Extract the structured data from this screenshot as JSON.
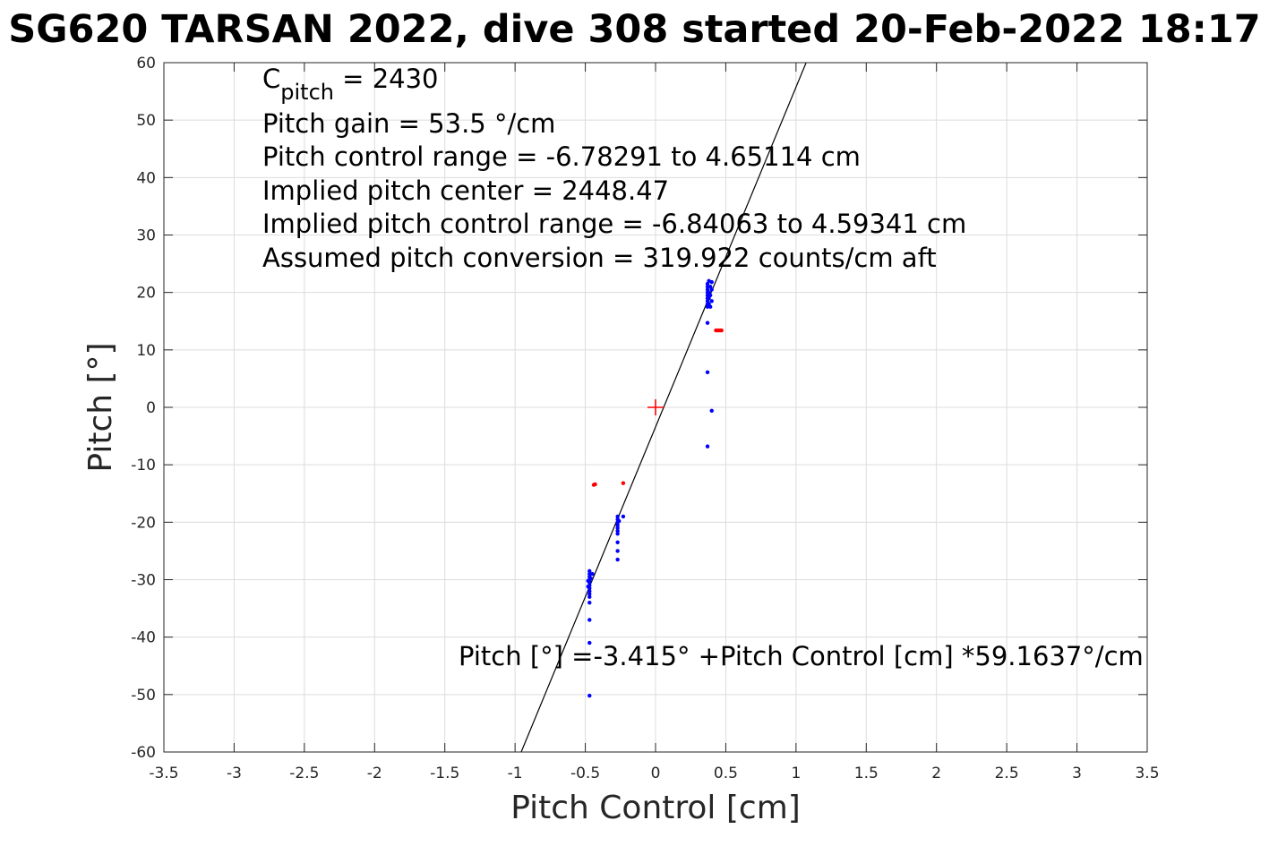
{
  "title": "SG620 TARSAN 2022, dive 308 started 20-Feb-2022 18:17",
  "chart_data": {
    "type": "scatter",
    "xlabel": "Pitch Control [cm]",
    "ylabel": "Pitch [°]",
    "xlim": [
      -3.5,
      3.5
    ],
    "ylim": [
      -60,
      60
    ],
    "xticks": [
      -3.5,
      -3,
      -2.5,
      -2,
      -1.5,
      -1,
      -0.5,
      0,
      0.5,
      1,
      1.5,
      2,
      2.5,
      3,
      3.5
    ],
    "yticks": [
      -60,
      -50,
      -40,
      -30,
      -20,
      -10,
      0,
      10,
      20,
      30,
      40,
      50,
      60
    ],
    "grid": true,
    "annotations": {
      "cpitch_base": "C",
      "cpitch_sub": "pitch",
      "cpitch_value": " = 2430",
      "pitch_gain": "Pitch gain = 53.5 °/cm",
      "control_range": "Pitch control range = -6.78291 to 4.65114 cm",
      "implied_center": "Implied pitch center = 2448.47",
      "implied_range": "Implied pitch control range = -6.84063 to 4.59341 cm",
      "conversion": "Assumed pitch conversion = 319.922 counts/cm aft",
      "fit_equation": "Pitch [°] =-3.415° +Pitch Control [cm] *59.1637°/cm"
    },
    "fit_line": {
      "intercept": -3.415,
      "slope": 59.1637,
      "color": "#000000"
    },
    "center_marker": {
      "x": 0,
      "y": 0,
      "color": "#ff0000"
    },
    "series": [
      {
        "color": "#0000ff",
        "points": [
          [
            -0.47,
            -28.5
          ],
          [
            -0.47,
            -29.0
          ],
          [
            -0.47,
            -29.5
          ],
          [
            -0.47,
            -30.0
          ],
          [
            -0.47,
            -30.5
          ],
          [
            -0.47,
            -31.0
          ],
          [
            -0.47,
            -31.5
          ],
          [
            -0.47,
            -32.0
          ],
          [
            -0.48,
            -30.2
          ],
          [
            -0.46,
            -29.8
          ],
          [
            -0.47,
            -32.5
          ],
          [
            -0.47,
            -33.0
          ],
          [
            -0.47,
            -34.0
          ],
          [
            -0.47,
            -37.0
          ],
          [
            -0.47,
            -41.0
          ],
          [
            -0.47,
            -50.2
          ],
          [
            -0.45,
            -29.0
          ],
          [
            -0.48,
            -31.2
          ],
          [
            -0.27,
            -19.0
          ],
          [
            -0.27,
            -19.5
          ],
          [
            -0.27,
            -20.0
          ],
          [
            -0.27,
            -20.5
          ],
          [
            -0.27,
            -21.0
          ],
          [
            -0.27,
            -21.5
          ],
          [
            -0.27,
            -22.0
          ],
          [
            -0.26,
            -19.8
          ],
          [
            -0.27,
            -23.5
          ],
          [
            -0.27,
            -25.0
          ],
          [
            -0.27,
            -26.5
          ],
          [
            -0.23,
            -19.0
          ],
          [
            0.37,
            17.5
          ],
          [
            0.37,
            18.0
          ],
          [
            0.37,
            18.5
          ],
          [
            0.37,
            19.0
          ],
          [
            0.37,
            19.5
          ],
          [
            0.37,
            20.0
          ],
          [
            0.37,
            20.5
          ],
          [
            0.37,
            21.0
          ],
          [
            0.37,
            21.5
          ],
          [
            0.38,
            18.0
          ],
          [
            0.38,
            19.0
          ],
          [
            0.38,
            20.0
          ],
          [
            0.39,
            21.0
          ],
          [
            0.39,
            19.5
          ],
          [
            0.4,
            18.5
          ],
          [
            0.4,
            20.5
          ],
          [
            0.4,
            21.8
          ],
          [
            0.39,
            17.5
          ],
          [
            0.38,
            22.0
          ],
          [
            0.37,
            14.7
          ],
          [
            0.37,
            6.1
          ],
          [
            0.4,
            -0.6
          ],
          [
            0.37,
            -6.8
          ]
        ]
      },
      {
        "color": "#ff0000",
        "points": [
          [
            -0.44,
            -13.5
          ],
          [
            -0.43,
            -13.4
          ],
          [
            -0.23,
            -13.2
          ],
          [
            0.43,
            13.4
          ],
          [
            0.44,
            13.4
          ],
          [
            0.45,
            13.4
          ],
          [
            0.46,
            13.4
          ],
          [
            0.47,
            13.4
          ]
        ]
      }
    ]
  }
}
